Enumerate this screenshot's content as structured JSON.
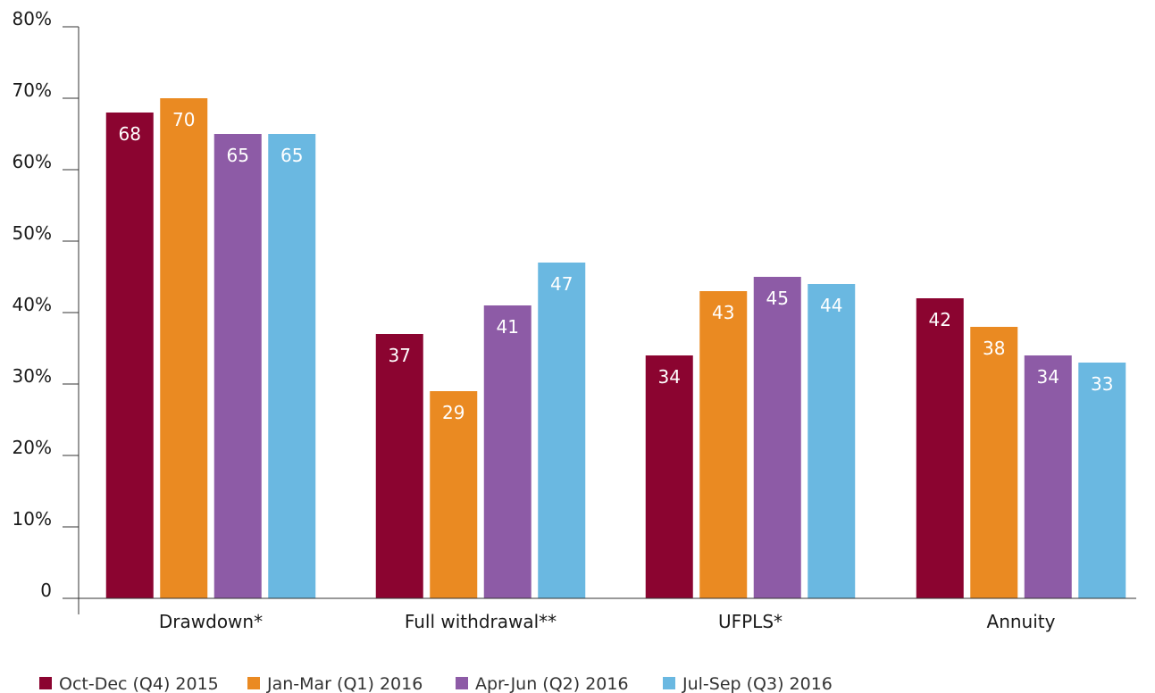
{
  "chart_data": {
    "type": "bar",
    "title": "",
    "xlabel": "",
    "ylabel": "",
    "ylim": [
      0,
      80
    ],
    "yticks": [
      {
        "value": 0,
        "label": "0"
      },
      {
        "value": 10,
        "label": "10%"
      },
      {
        "value": 20,
        "label": "20%"
      },
      {
        "value": 30,
        "label": "30%"
      },
      {
        "value": 40,
        "label": "40%"
      },
      {
        "value": 50,
        "label": "50%"
      },
      {
        "value": 60,
        "label": "60%"
      },
      {
        "value": 70,
        "label": "70%"
      },
      {
        "value": 80,
        "label": "80%"
      }
    ],
    "grid": false,
    "legend_position": "bottom",
    "categories": [
      "Drawdown*",
      "Full withdrawal**",
      "UFPLS*",
      "Annuity"
    ],
    "series": [
      {
        "name": "Oct-Dec (Q4) 2015",
        "color": "#8b0430",
        "values": [
          68,
          37,
          34,
          42
        ],
        "labels": [
          "68",
          "37",
          "34",
          "42"
        ]
      },
      {
        "name": "Jan-Mar (Q1) 2016",
        "color": "#ea8a22",
        "values": [
          70,
          29,
          43,
          38
        ],
        "labels": [
          "70",
          "29",
          "43",
          "38"
        ]
      },
      {
        "name": "Apr-Jun (Q2) 2016",
        "color": "#8d5ba6",
        "values": [
          65,
          41,
          45,
          34
        ],
        "labels": [
          "65",
          "41",
          "45",
          "34"
        ]
      },
      {
        "name": "Jul-Sep (Q3) 2016",
        "color": "#6ab8e1",
        "values": [
          65,
          47,
          44,
          33
        ],
        "labels": [
          "65",
          "47",
          "44",
          "33"
        ]
      }
    ]
  }
}
